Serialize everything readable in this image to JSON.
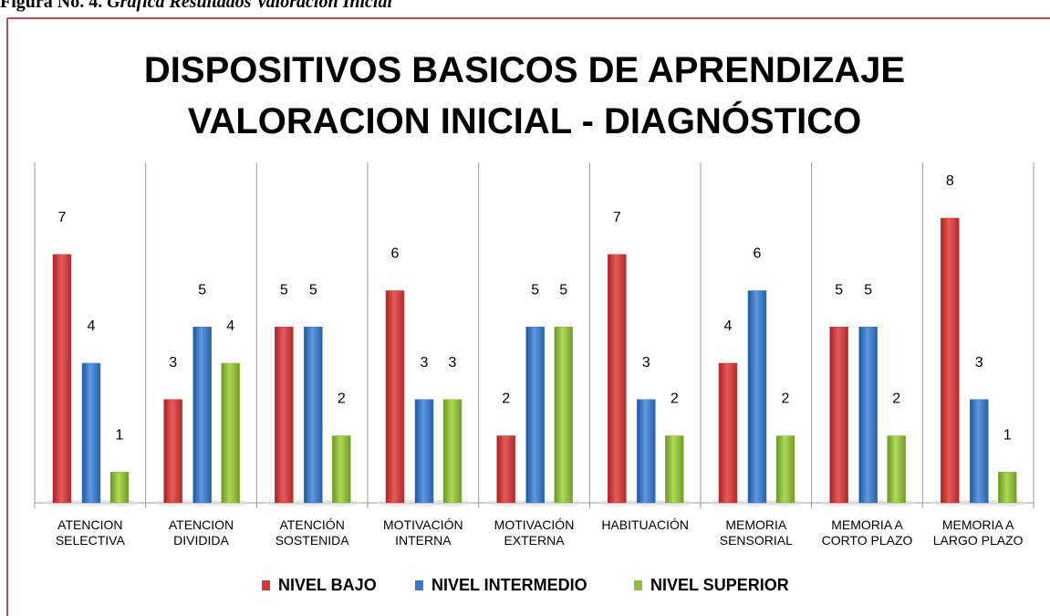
{
  "caption": {
    "label": "Figura No. 4.",
    "text": "Gráfica Resultados Valoración Inicial"
  },
  "chart_data": {
    "type": "bar",
    "title": [
      "DISPOSITIVOS BASICOS DE APRENDIZAJE",
      "VALORACION INICIAL - DIAGNÓSTICO"
    ],
    "categories": [
      [
        "ATENCION",
        "SELECTIVA"
      ],
      [
        "ATENCION",
        "DIVIDIDA"
      ],
      [
        "ATENCIÓN",
        "SOSTENIDA"
      ],
      [
        "MOTIVACIÓN",
        "INTERNA"
      ],
      [
        "MOTIVACIÓN",
        "EXTERNA"
      ],
      [
        "HABITUACIÓN"
      ],
      [
        "MEMORIA",
        "SENSORIAL"
      ],
      [
        "MEMORIA A",
        "CORTO PLAZO"
      ],
      [
        "MEMORIA A",
        "LARGO PLAZO"
      ]
    ],
    "series": [
      {
        "name": "NIVEL BAJO",
        "color": "#d23b3b",
        "values": [
          7,
          3,
          5,
          6,
          2,
          7,
          4,
          5,
          8
        ]
      },
      {
        "name": "NIVEL INTERMEDIO",
        "color": "#3b78c9",
        "values": [
          4,
          5,
          5,
          3,
          5,
          3,
          6,
          5,
          3
        ]
      },
      {
        "name": "NIVEL SUPERIOR",
        "color": "#8dbb3a",
        "values": [
          1,
          4,
          2,
          3,
          5,
          2,
          2,
          2,
          1
        ]
      }
    ],
    "ylim": [
      0,
      8
    ],
    "legend": "bottom"
  }
}
